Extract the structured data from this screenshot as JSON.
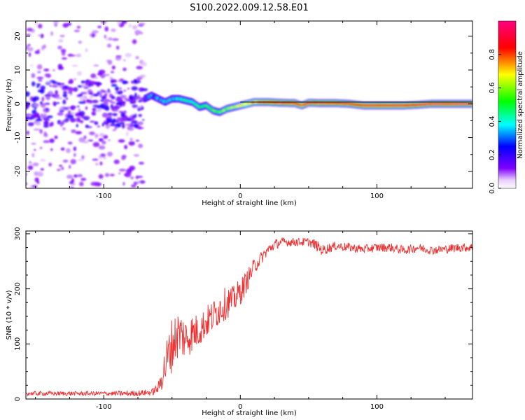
{
  "figure_title": "S100.2022.009.12.58.E01",
  "chart_data": [
    {
      "type": "heatmap",
      "title": "S100.2022.009.12.58.E01",
      "xlabel": "Height of straight line (km)",
      "ylabel": "Frequency (Hz)",
      "xlim": [
        -157,
        170
      ],
      "ylim": [
        -25,
        24.5
      ],
      "xticks": [
        -100,
        0,
        100
      ],
      "xtick_labels": [
        "-100",
        "0",
        "100"
      ],
      "yticks": [
        -20,
        -10,
        0,
        10,
        20
      ],
      "ytick_labels": [
        "-20",
        "-10",
        "0",
        "10",
        "20"
      ],
      "colorbar": {
        "label": "Normalized spectral amplitude",
        "range": [
          0,
          1
        ],
        "ticks": [
          0,
          0.2,
          0.4,
          0.6,
          0.8
        ],
        "tick_labels": [
          "0.0",
          "0.2",
          "0.4",
          "0.6",
          "0.8"
        ],
        "colormap": [
          "#ffffff",
          "#8000ff",
          "#0000ff",
          "#00ffff",
          "#00ff00",
          "#ffff00",
          "#ff0000",
          "#ff0080"
        ]
      },
      "ridge": {
        "x": [
          -70,
          -65,
          -60,
          -55,
          -50,
          -45,
          -40,
          -35,
          -30,
          -25,
          -20,
          -15,
          -10,
          -5,
          0,
          5,
          10,
          15,
          20,
          30,
          40,
          45,
          50,
          60,
          70,
          80,
          90,
          100,
          110,
          120,
          130,
          140,
          150,
          160,
          170
        ],
        "frequency": [
          1.5,
          2.5,
          1.5,
          0.5,
          1.5,
          1.5,
          1.0,
          0.5,
          -1.0,
          -0.5,
          -2.0,
          -2.5,
          -1.5,
          -1.0,
          -0.5,
          0.0,
          0.5,
          0.5,
          0.5,
          0.3,
          0.2,
          -0.5,
          0.3,
          0.2,
          0.2,
          0.0,
          -0.5,
          -0.5,
          -0.5,
          -0.5,
          -0.3,
          0.0,
          0.0,
          0.0,
          0.0
        ],
        "amplitude": [
          0.25,
          0.3,
          0.3,
          0.35,
          0.35,
          0.4,
          0.45,
          0.4,
          0.5,
          0.5,
          0.55,
          0.55,
          0.6,
          0.6,
          0.65,
          0.7,
          0.75,
          0.8,
          0.85,
          0.95,
          0.9,
          0.8,
          0.9,
          0.95,
          0.9,
          0.9,
          0.85,
          0.9,
          0.85,
          0.9,
          0.9,
          0.95,
          0.95,
          0.95,
          0.95
        ]
      },
      "noise_region": {
        "x_range": [
          -157,
          -70
        ],
        "frequency_range": [
          -25,
          24.5
        ],
        "amplitude_range": [
          0.05,
          0.2
        ]
      }
    },
    {
      "type": "line",
      "xlabel": "Height of straight line (km)",
      "ylabel": "SNR (10 * v/v)",
      "xlim": [
        -157,
        170
      ],
      "ylim": [
        0,
        305
      ],
      "xticks": [
        -100,
        0,
        100
      ],
      "xtick_labels": [
        "-100",
        "0",
        "100"
      ],
      "yticks": [
        0,
        100,
        200,
        300
      ],
      "ytick_labels": [
        "0",
        "100",
        "200",
        "300"
      ],
      "color": "#f03030",
      "x": [
        -157,
        -140,
        -120,
        -100,
        -80,
        -65,
        -60,
        -55,
        -50,
        -45,
        -40,
        -35,
        -30,
        -25,
        -20,
        -15,
        -10,
        -5,
        0,
        5,
        10,
        15,
        20,
        25,
        30,
        40,
        50,
        55,
        60,
        70,
        80,
        90,
        100,
        110,
        120,
        130,
        140,
        150,
        160,
        170
      ],
      "y": [
        10,
        10,
        10,
        10,
        10,
        12,
        20,
        60,
        100,
        120,
        110,
        120,
        125,
        140,
        150,
        165,
        175,
        180,
        195,
        215,
        240,
        255,
        270,
        280,
        285,
        285,
        285,
        280,
        270,
        278,
        275,
        272,
        275,
        275,
        270,
        275,
        270,
        272,
        275,
        275
      ],
      "noise_amplitude": [
        4,
        4,
        4,
        4,
        5,
        6,
        10,
        40,
        50,
        45,
        40,
        35,
        30,
        30,
        30,
        30,
        30,
        25,
        25,
        20,
        15,
        12,
        10,
        10,
        8,
        8,
        8,
        10,
        10,
        8,
        8,
        8,
        8,
        8,
        8,
        8,
        8,
        8,
        8,
        8
      ]
    }
  ]
}
